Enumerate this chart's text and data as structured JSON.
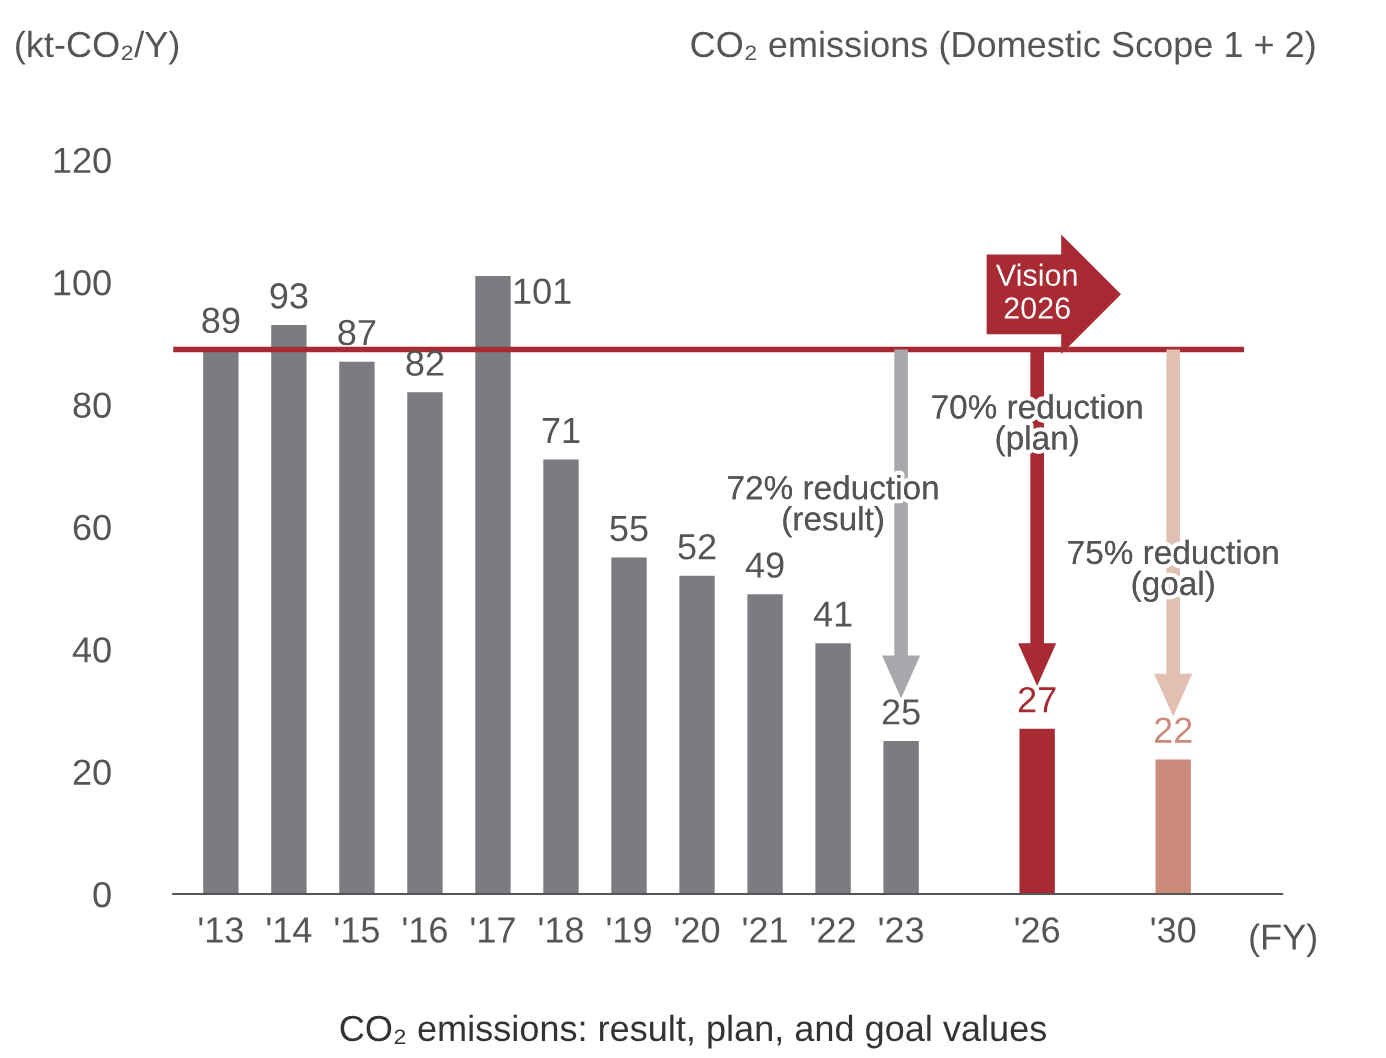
{
  "chart_data": {
    "type": "bar",
    "title": "CO₂ emissions (Domestic Scope 1 + 2)",
    "ylabel": "(kt-CO₂/Y)",
    "xlabel": "(FY)",
    "categories": [
      "'13",
      "'14",
      "'15",
      "'16",
      "'17",
      "'18",
      "'19",
      "'20",
      "'21",
      "'22",
      "'23",
      null,
      "'26",
      null,
      "'30"
    ],
    "values": [
      89,
      93,
      87,
      82,
      101,
      71,
      55,
      52,
      49,
      41,
      25,
      null,
      27,
      null,
      22
    ],
    "colors": [
      "#7b7c81",
      "#7b7c81",
      "#7b7c81",
      "#7b7c81",
      "#7b7c81",
      "#7b7c81",
      "#7b7c81",
      "#7b7c81",
      "#7b7c81",
      "#7b7c81",
      "#7b7c81",
      "#7b7c81",
      "#a82a32",
      "#7b7c81",
      "#cc8a7a"
    ],
    "data_labels": true,
    "ylim": [
      0,
      120
    ],
    "yticks": [
      0,
      20,
      40,
      60,
      80,
      100,
      120
    ],
    "grid": false,
    "legend": false,
    "ref_lines": [
      {
        "axis": "y",
        "value": 89,
        "color": "#a82a32"
      }
    ],
    "annotations": [
      {
        "text": "Vision\n2026",
        "x": "'26",
        "y": 89
      },
      "72% reduction\n(result)",
      "70% reduction\n(plan)",
      "75% reduction\n(goal)",
      "CO₂ emissions: result, plan, and goal values"
    ]
  }
}
